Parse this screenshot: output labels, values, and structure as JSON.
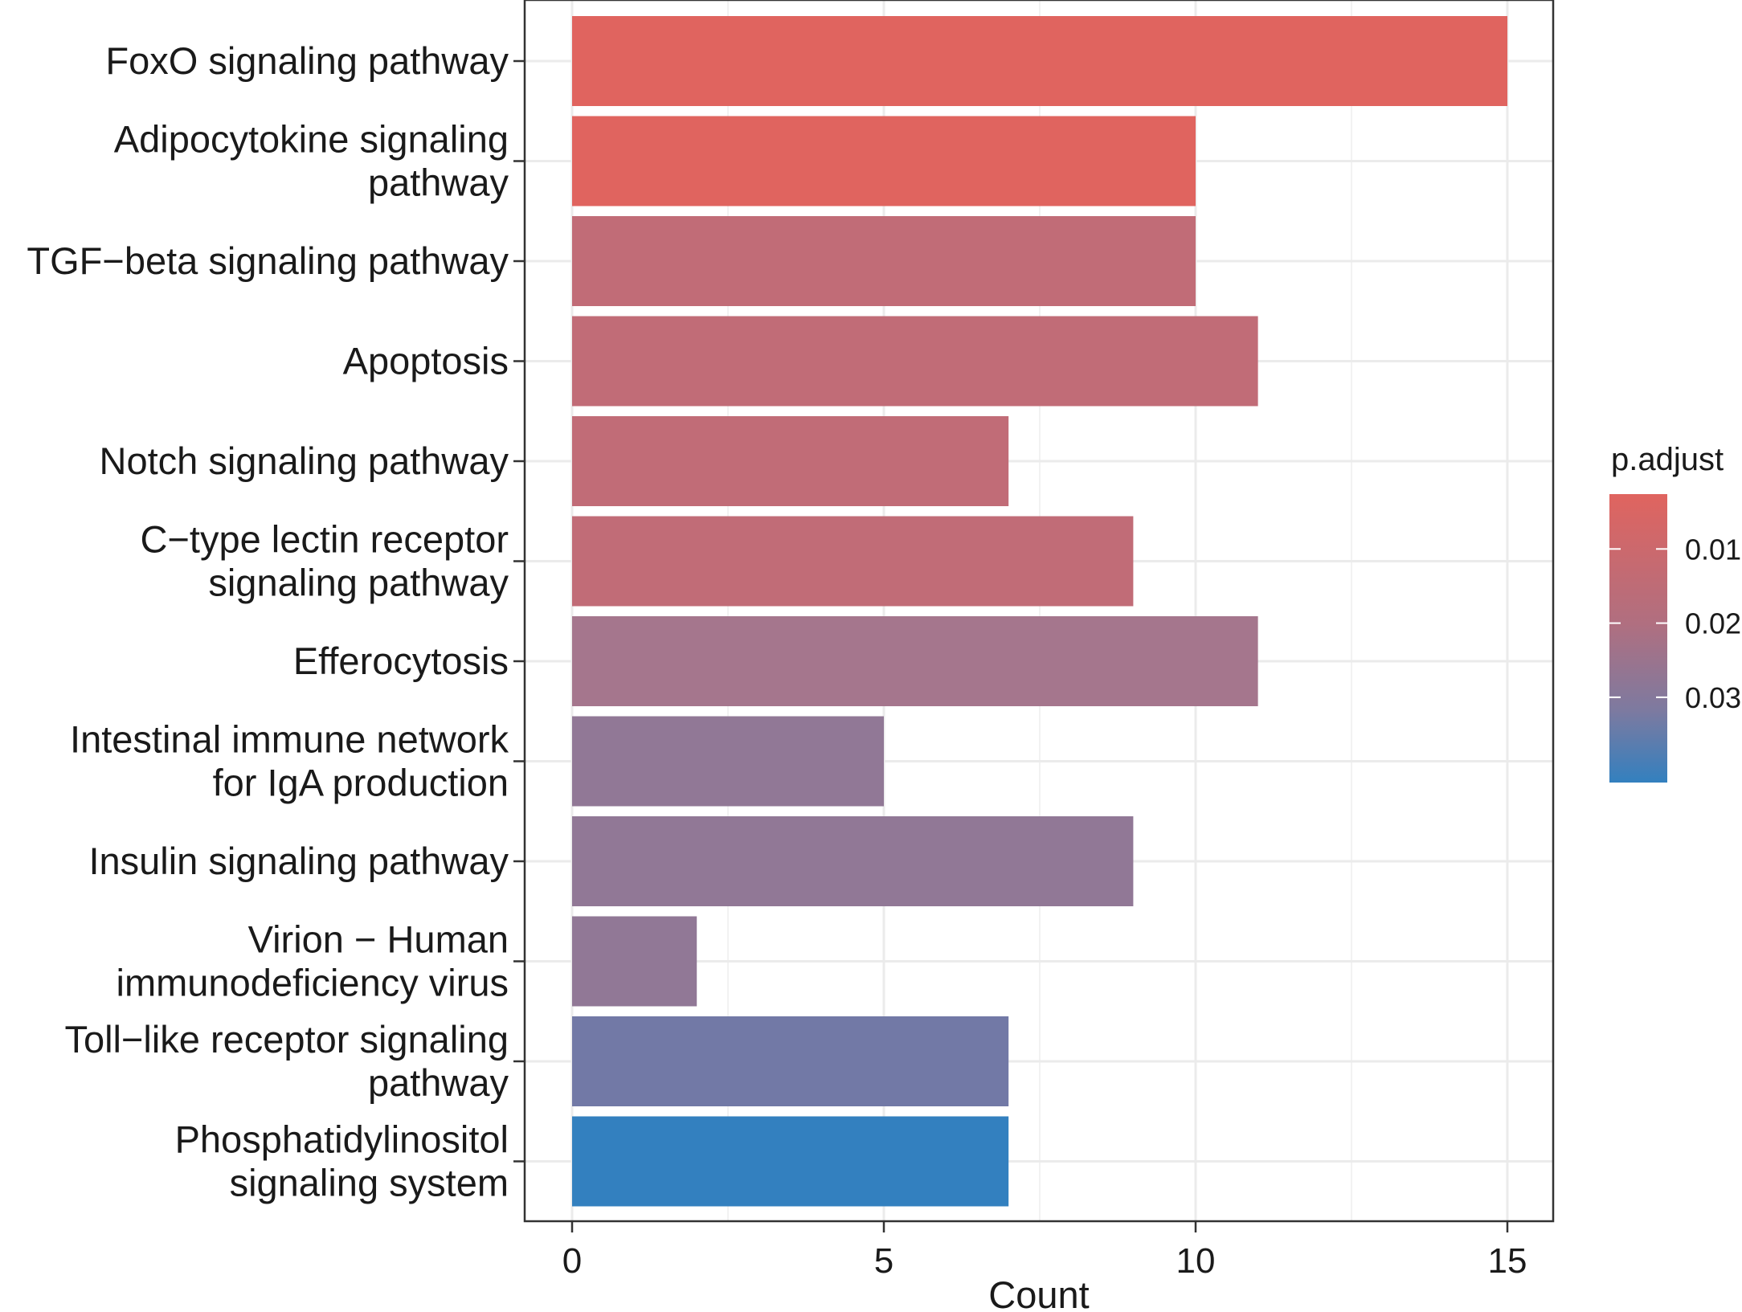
{
  "chart_data": {
    "type": "bar",
    "orientation": "horizontal",
    "xlabel": "Count",
    "ylabel": "",
    "xlim": [
      0,
      15.75
    ],
    "x_ticks": [
      0,
      5,
      10,
      15
    ],
    "x_tick_labels": [
      "0",
      "5",
      "10",
      "15"
    ],
    "x_minor_ticks": [
      2.5,
      7.5,
      12.5
    ],
    "grid": true,
    "legend": {
      "title": "p.adjust",
      "position": "right",
      "range": [
        0.0026,
        0.0415
      ],
      "ticks": [
        0.01,
        0.02,
        0.03
      ],
      "tick_labels": [
        "0.01",
        "0.02",
        "0.03"
      ],
      "color_low": "#e0645f",
      "color_high": "#3380bf"
    },
    "bars": [
      {
        "label": [
          "FoxO signaling pathway"
        ],
        "count": 15,
        "p_adjust": 0.0026,
        "color": "#e0645f"
      },
      {
        "label": [
          "Adipocytokine signaling",
          "pathway"
        ],
        "count": 10,
        "p_adjust": 0.0026,
        "color": "#e0645f"
      },
      {
        "label": [
          "TGF−beta signaling pathway"
        ],
        "count": 10,
        "p_adjust": 0.0115,
        "color": "#c16c77"
      },
      {
        "label": [
          "Apoptosis"
        ],
        "count": 11,
        "p_adjust": 0.0115,
        "color": "#c16c77"
      },
      {
        "label": [
          "Notch signaling pathway"
        ],
        "count": 7,
        "p_adjust": 0.0115,
        "color": "#c16c77"
      },
      {
        "label": [
          "C−type lectin receptor",
          "signaling pathway"
        ],
        "count": 9,
        "p_adjust": 0.0115,
        "color": "#c16c77"
      },
      {
        "label": [
          "Efferocytosis"
        ],
        "count": 11,
        "p_adjust": 0.0175,
        "color": "#a5768d"
      },
      {
        "label": [
          "Intestinal immune network",
          "for IgA production"
        ],
        "count": 5,
        "p_adjust": 0.0205,
        "color": "#917896"
      },
      {
        "label": [
          "Insulin signaling pathway"
        ],
        "count": 9,
        "p_adjust": 0.0205,
        "color": "#917896"
      },
      {
        "label": [
          "Virion − Human",
          "immunodeficiency virus"
        ],
        "count": 2,
        "p_adjust": 0.0205,
        "color": "#917896"
      },
      {
        "label": [
          "Toll−like receptor signaling",
          "pathway"
        ],
        "count": 7,
        "p_adjust": 0.0265,
        "color": "#7279a6"
      },
      {
        "label": [
          "Phosphatidylinositol",
          "signaling system"
        ],
        "count": 7,
        "p_adjust": 0.0415,
        "color": "#3380bf"
      }
    ]
  }
}
